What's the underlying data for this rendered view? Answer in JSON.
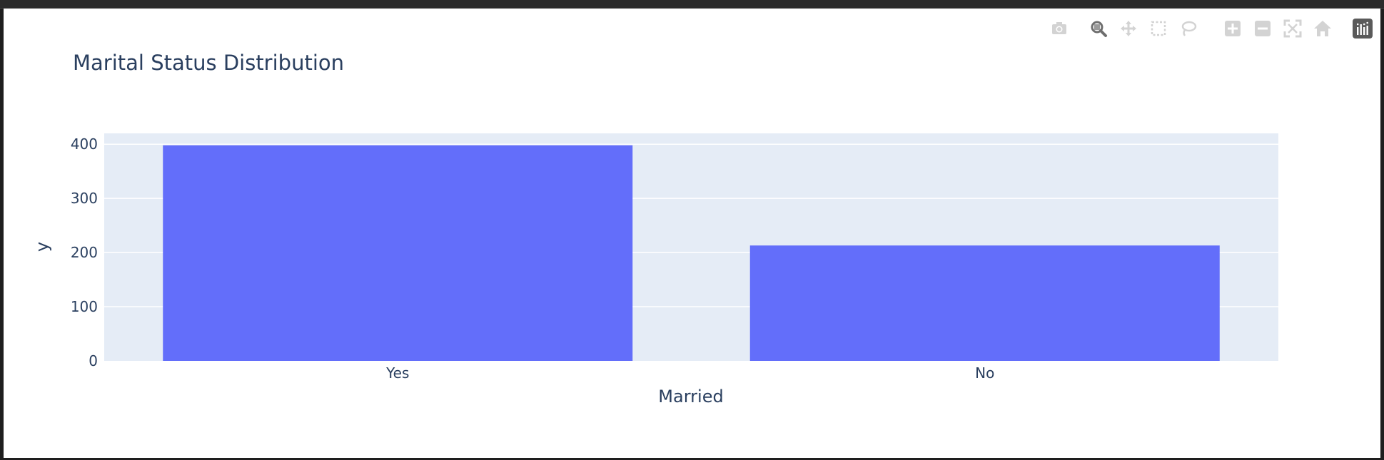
{
  "chart_data": {
    "type": "bar",
    "title": "Marital Status Distribution",
    "xlabel": "Married",
    "ylabel": "y",
    "categories": [
      "Yes",
      "No"
    ],
    "values": [
      398,
      213
    ],
    "ylim": [
      0,
      420
    ],
    "yticks": [
      0,
      100,
      200,
      300,
      400
    ],
    "bar_color": "#636efa",
    "plot_bg": "#e5ecf6",
    "text_color": "#2a3f5f",
    "grid": true
  },
  "modebar": {
    "buttons": [
      "camera-icon",
      "zoom-icon",
      "pan-icon",
      "box-select-icon",
      "lasso-select-icon",
      "zoom-in-icon",
      "zoom-out-icon",
      "autoscale-icon",
      "reset-axes-icon",
      "plotly-logo-icon"
    ]
  }
}
